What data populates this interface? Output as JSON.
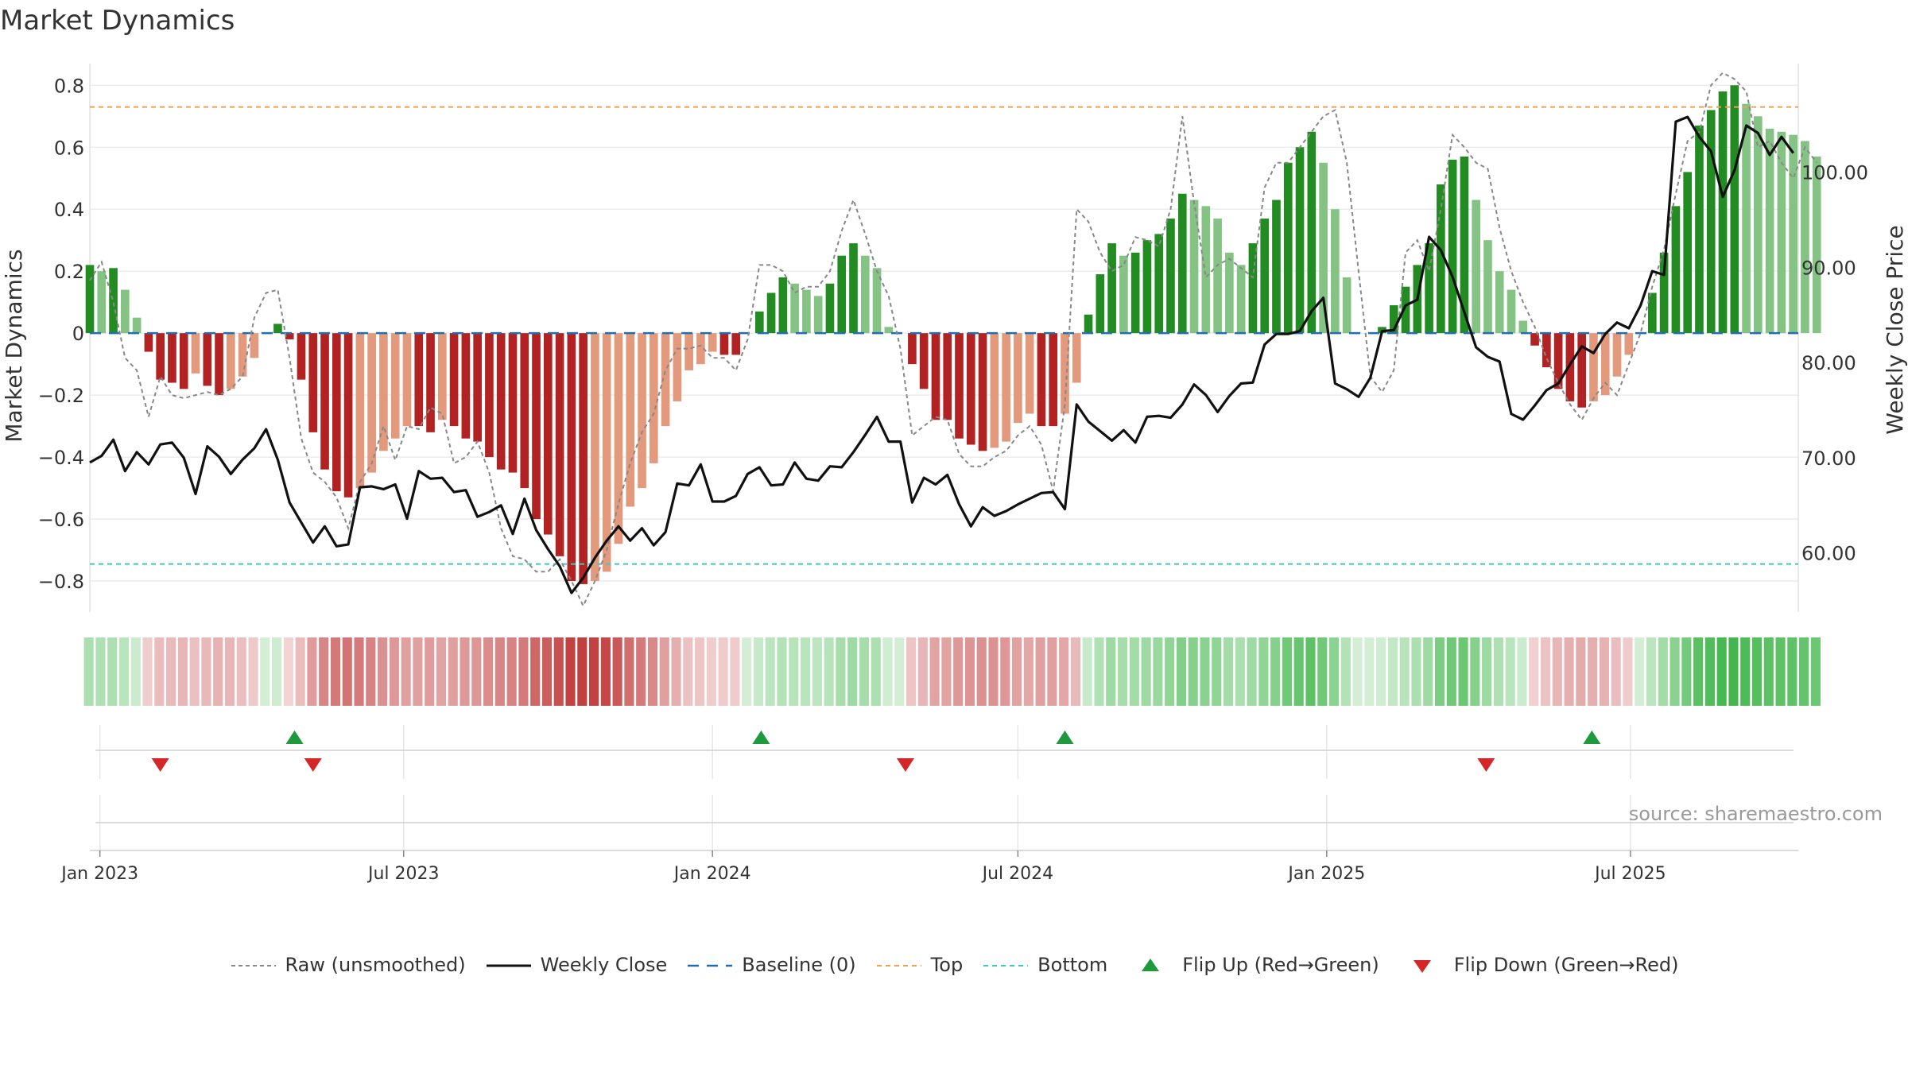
{
  "chart_data": {
    "type": "bar",
    "title": "Market Dynamics",
    "ylabel_left": "Market Dynamics",
    "ylabel_right": "Weekly Close Price",
    "ylim_left": [
      -0.9,
      0.87
    ],
    "ylim_right": [
      53.8,
      111.4
    ],
    "left_ticks": [
      "0.8",
      "0.6",
      "0.4",
      "0.2",
      "0",
      "−0.2",
      "−0.4",
      "−0.6",
      "−0.8"
    ],
    "left_tick_values": [
      0.8,
      0.6,
      0.4,
      0.2,
      0,
      -0.2,
      -0.4,
      -0.6,
      -0.8
    ],
    "right_ticks": [
      "100.00",
      "90.00",
      "80.00",
      "70.00",
      "60.00"
    ],
    "right_tick_values": [
      100,
      90,
      80,
      70,
      60
    ],
    "x_start": "2022-12-26",
    "x_end": "2025-10-09",
    "x_ticks": [
      {
        "label": "Jan 2023",
        "date": "2023-01-01"
      },
      {
        "label": "Jul 2023",
        "date": "2023-07-01"
      },
      {
        "label": "Jan 2024",
        "date": "2024-01-01"
      },
      {
        "label": "Jul 2024",
        "date": "2024-07-01"
      },
      {
        "label": "Jan 2025",
        "date": "2025-01-01"
      },
      {
        "label": "Jul 2025",
        "date": "2025-07-01"
      }
    ],
    "first_week": "2022-12-26",
    "weeks": 146,
    "bars": [
      0.22,
      0.2,
      0.21,
      0.14,
      0.05,
      -0.06,
      -0.15,
      -0.16,
      -0.18,
      -0.13,
      -0.17,
      -0.2,
      -0.18,
      -0.14,
      -0.08,
      0,
      0.03,
      -0.02,
      -0.15,
      -0.32,
      -0.44,
      -0.51,
      -0.53,
      -0.5,
      -0.45,
      -0.38,
      -0.34,
      -0.3,
      -0.3,
      -0.32,
      -0.28,
      -0.3,
      -0.34,
      -0.35,
      -0.4,
      -0.44,
      -0.45,
      -0.5,
      -0.6,
      -0.65,
      -0.72,
      -0.8,
      -0.81,
      -0.8,
      -0.77,
      -0.68,
      -0.56,
      -0.5,
      -0.42,
      -0.3,
      -0.22,
      -0.12,
      -0.1,
      -0.06,
      -0.07,
      -0.07,
      0,
      0.07,
      0.13,
      0.18,
      0.16,
      0.14,
      0.12,
      0.16,
      0.25,
      0.29,
      0.25,
      0.21,
      0.02,
      0,
      -0.1,
      -0.18,
      -0.28,
      -0.28,
      -0.34,
      -0.36,
      -0.38,
      -0.37,
      -0.35,
      -0.29,
      -0.26,
      -0.3,
      -0.3,
      -0.26,
      -0.16,
      0.06,
      0.19,
      0.29,
      0.25,
      0.26,
      0.3,
      0.32,
      0.37,
      0.45,
      0.43,
      0.41,
      0.37,
      0.26,
      0.22,
      0.29,
      0.37,
      0.43,
      0.55,
      0.6,
      0.65,
      0.55,
      0.4,
      0.18,
      0,
      0,
      0.02,
      0.09,
      0.15,
      0.22,
      0.29,
      0.48,
      0.56,
      0.57,
      0.43,
      0.3,
      0.2,
      0.14,
      0.04,
      -0.04,
      -0.11,
      -0.18,
      -0.22,
      -0.24,
      -0.22,
      -0.2,
      -0.14,
      -0.07,
      0,
      0.13,
      0.26,
      0.41,
      0.52,
      0.67,
      0.72,
      0.78,
      0.8,
      0.74,
      0.7,
      0.66,
      0.65,
      0.64,
      0.62,
      0.57
    ],
    "raw": [
      0.17,
      0.23,
      0.1,
      -0.08,
      -0.12,
      -0.27,
      -0.14,
      -0.2,
      -0.21,
      -0.2,
      -0.19,
      -0.2,
      -0.18,
      -0.14,
      0.05,
      0.13,
      0.14,
      -0.08,
      -0.34,
      -0.45,
      -0.48,
      -0.53,
      -0.63,
      -0.48,
      -0.42,
      -0.3,
      -0.41,
      -0.3,
      -0.31,
      -0.24,
      -0.26,
      -0.42,
      -0.4,
      -0.35,
      -0.45,
      -0.63,
      -0.72,
      -0.73,
      -0.77,
      -0.77,
      -0.73,
      -0.8,
      -0.88,
      -0.8,
      -0.7,
      -0.55,
      -0.42,
      -0.32,
      -0.26,
      -0.12,
      -0.05,
      -0.05,
      -0.04,
      -0.08,
      -0.08,
      -0.12,
      -0.02,
      0.22,
      0.22,
      0.2,
      0.13,
      0.15,
      0.15,
      0.2,
      0.33,
      0.43,
      0.32,
      0.2,
      0.12,
      -0.05,
      -0.33,
      -0.3,
      -0.27,
      -0.28,
      -0.39,
      -0.43,
      -0.43,
      -0.4,
      -0.38,
      -0.33,
      -0.3,
      -0.36,
      -0.51,
      -0.23,
      0.4,
      0.36,
      0.26,
      0.2,
      0.22,
      0.31,
      0.3,
      0.28,
      0.4,
      0.7,
      0.42,
      0.18,
      0.22,
      0.24,
      0.21,
      0.18,
      0.47,
      0.55,
      0.55,
      0.6,
      0.65,
      0.7,
      0.72,
      0.55,
      0.2,
      -0.14,
      -0.19,
      -0.12,
      0.26,
      0.3,
      0.2,
      0.4,
      0.64,
      0.6,
      0.55,
      0.53,
      0.34,
      0.2,
      0.1,
      0.02,
      -0.08,
      -0.16,
      -0.23,
      -0.28,
      -0.21,
      -0.16,
      -0.2,
      -0.1,
      0,
      0.15,
      0.27,
      0.45,
      0.62,
      0.65,
      0.8,
      0.84,
      0.82,
      0.78,
      0.6,
      0.62,
      0.55,
      0.5,
      0.6,
      0.55
    ],
    "close": [
      69.5,
      70.2,
      71.9,
      68.6,
      70.6,
      69.3,
      71.4,
      71.6,
      70,
      66.2,
      71.2,
      70.1,
      68.3,
      69.8,
      71,
      73,
      69.8,
      65.3,
      63.2,
      61.1,
      62.8,
      60.7,
      60.9,
      66.9,
      67,
      66.7,
      67.2,
      63.6,
      68.6,
      67.8,
      67.9,
      66.4,
      66.6,
      63.8,
      64.3,
      65,
      62,
      65.7,
      62.4,
      60.4,
      58.6,
      55.8,
      57.4,
      59.5,
      61.3,
      62.8,
      61.3,
      62.6,
      60.8,
      62.2,
      67.3,
      67.1,
      69.3,
      65.4,
      65.4,
      66,
      68.3,
      69,
      67.1,
      67.2,
      69.5,
      67.8,
      67.6,
      69.1,
      69,
      70.6,
      72.4,
      74.3,
      71.7,
      71.7,
      65.3,
      67.9,
      67.2,
      68.2,
      65.1,
      62.8,
      64.8,
      63.9,
      64.4,
      65.1,
      65.7,
      66.3,
      66.4,
      64.6,
      75.6,
      73.8,
      72.8,
      71.8,
      72.9,
      71.6,
      74.3,
      74.4,
      74.2,
      75.6,
      77.7,
      76.6,
      74.8,
      76.5,
      77.8,
      77.9,
      81.9,
      83,
      83,
      83.3,
      85.4,
      86.8,
      77.8,
      77.2,
      76.4,
      78.4,
      83.3,
      83.4,
      86,
      86.6,
      93.2,
      91.8,
      89,
      85.3,
      81.6,
      80.6,
      80.1,
      74.6,
      74,
      75.5,
      77.1,
      77.8,
      79.8,
      81.7,
      81,
      83,
      84.2,
      83.6,
      86,
      89.6,
      89.2,
      105.3,
      105.8,
      103.7,
      102.2,
      97.4,
      100.2,
      104.9,
      104.1,
      101.8,
      103.7,
      102
    ],
    "top_level": 0.73,
    "bottom_level": -0.745,
    "baseline": 0,
    "flips": [
      {
        "type": "down",
        "date": "2023-02-06"
      },
      {
        "type": "up",
        "date": "2023-04-27"
      },
      {
        "type": "down",
        "date": "2023-05-08"
      },
      {
        "type": "up",
        "date": "2024-01-30"
      },
      {
        "type": "down",
        "date": "2024-04-25"
      },
      {
        "type": "up",
        "date": "2024-07-29"
      },
      {
        "type": "down",
        "date": "2025-04-06"
      },
      {
        "type": "up",
        "date": "2025-06-08"
      }
    ],
    "legend": [
      {
        "label": "Raw (unsmoothed)",
        "kind": "raw"
      },
      {
        "label": "Weekly Close",
        "kind": "close"
      },
      {
        "label": "Baseline (0)",
        "kind": "baseline"
      },
      {
        "label": "Top",
        "kind": "top"
      },
      {
        "label": "Bottom",
        "kind": "bottom"
      },
      {
        "label": "Flip Up (Red→Green)",
        "kind": "flipup"
      },
      {
        "label": "Flip Down (Green→Red)",
        "kind": "flipdown"
      }
    ],
    "colors": {
      "green_strong": "#228b22",
      "green_light": "#84c384",
      "red_strong": "#b22222",
      "red_light": "#e3997c",
      "raw": "#888888",
      "close": "#111111",
      "baseline": "#1f6fb2",
      "top": "#f0a050",
      "bottom": "#40c8c0",
      "flip_up": "#1e9a3c",
      "flip_down": "#d62728"
    }
  },
  "watermark": "source: sharemaestro.com"
}
